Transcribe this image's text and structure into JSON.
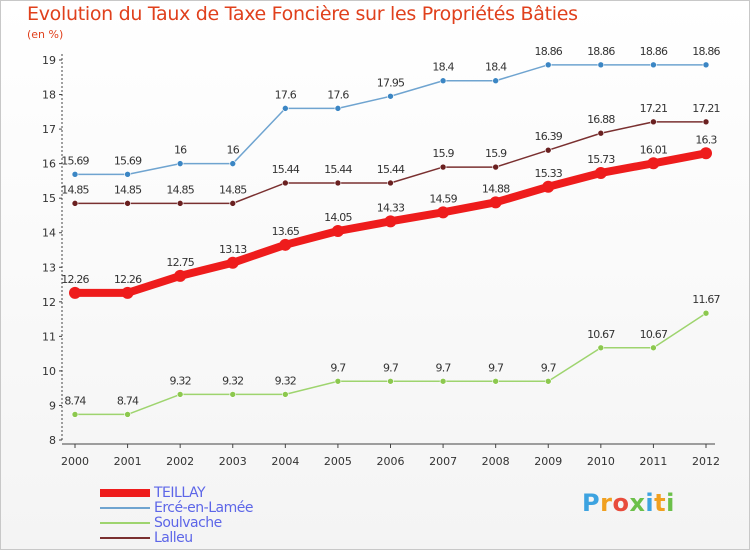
{
  "title": "Evolution du Taux de Taxe Foncière sur les Propriétés Bâties",
  "unit": "(en %)",
  "logo": {
    "letters": [
      "P",
      "r",
      "o",
      "x",
      "i",
      "t",
      "i"
    ],
    "colors": [
      "#3da3e0",
      "#f0a020",
      "#e84c3c",
      "#6cc04a",
      "#3da3e0",
      "#f0a020",
      "#6cc04a"
    ]
  },
  "chart_data": {
    "type": "line",
    "title": "Evolution du Taux de Taxe Foncière sur les Propriétés Bâties",
    "ylabel": "(en %)",
    "xlabel": "",
    "x": [
      "2000",
      "2001",
      "2002",
      "2003",
      "2004",
      "2005",
      "2006",
      "2007",
      "2008",
      "2009",
      "2010",
      "2011",
      "2012"
    ],
    "ylim": [
      8,
      19
    ],
    "yticks": [
      8,
      9,
      10,
      11,
      12,
      13,
      14,
      15,
      16,
      17,
      18,
      19
    ],
    "grid": false,
    "legend_position": "bottom-left",
    "series": [
      {
        "name": "TEILLAY",
        "color": "#ee1c1c",
        "emphasis": true,
        "values": [
          12.26,
          12.26,
          12.75,
          13.13,
          13.65,
          14.05,
          14.33,
          14.59,
          14.88,
          15.33,
          15.73,
          16.01,
          16.3
        ],
        "labels": [
          "12.26",
          "12.26",
          "12.75",
          "13.13",
          "13.65",
          "14.05",
          "14.33",
          "14.59",
          "14.88",
          "15.33",
          "15.73",
          "16.01",
          "16.3"
        ]
      },
      {
        "name": "Ercé-en-Lamée",
        "color": "#6fa4d0",
        "marker": "#3b86c4",
        "values": [
          15.69,
          15.69,
          16,
          16,
          17.6,
          17.6,
          17.95,
          18.4,
          18.4,
          18.86,
          18.86,
          18.86,
          18.86
        ],
        "labels": [
          "15.69",
          "15.69",
          "16",
          "16",
          "17.6",
          "17.6",
          "17.95",
          "18.4",
          "18.4",
          "18.86",
          "18.86",
          "18.86",
          "18.86"
        ]
      },
      {
        "name": "Soulvache",
        "color": "#9ed46e",
        "marker": "#8cc84e",
        "values": [
          8.74,
          8.74,
          9.32,
          9.32,
          9.32,
          9.7,
          9.7,
          9.7,
          9.7,
          9.7,
          10.67,
          10.67,
          11.67
        ],
        "labels": [
          "8.74",
          "8.74",
          "9.32",
          "9.32",
          "9.32",
          "9.7",
          "9.7",
          "9.7",
          "9.7",
          "9.7",
          "10.67",
          "10.67",
          "11.67"
        ]
      },
      {
        "name": "Lalleu",
        "color": "#7a3030",
        "marker": "#6a2020",
        "values": [
          14.85,
          14.85,
          14.85,
          14.85,
          15.44,
          15.44,
          15.44,
          15.9,
          15.9,
          16.39,
          16.88,
          17.21,
          17.21
        ],
        "labels": [
          "14.85",
          "14.85",
          "14.85",
          "14.85",
          "15.44",
          "15.44",
          "15.44",
          "15.9",
          "15.9",
          "16.39",
          "16.88",
          "17.21",
          "17.21"
        ]
      }
    ]
  }
}
